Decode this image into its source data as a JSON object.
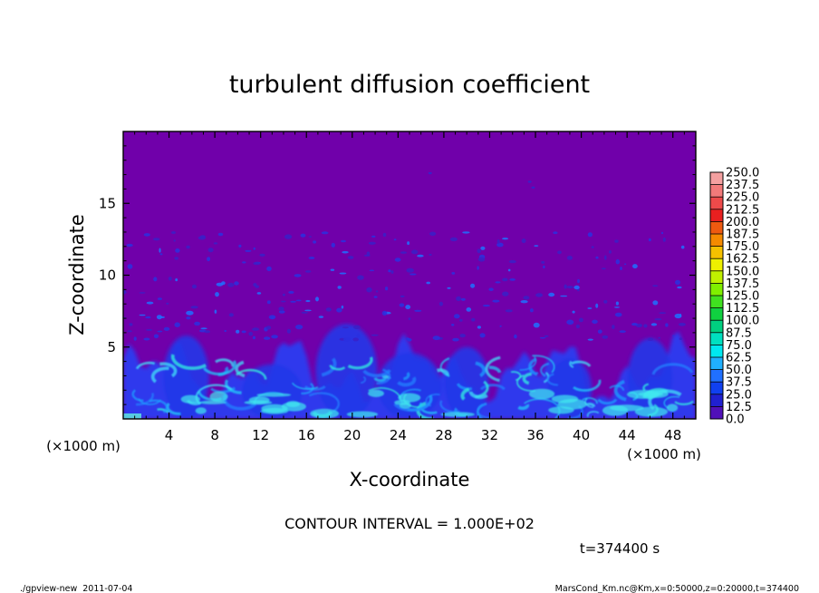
{
  "chart_data": {
    "type": "heatmap",
    "title": "turbulent diffusion coefficient",
    "xlabel": "X-coordinate",
    "ylabel": "Z-coordinate",
    "x_units": "(×1000 m)",
    "y_units": "(×1000 m)",
    "xlim": [
      0,
      50
    ],
    "ylim": [
      0,
      20
    ],
    "x_ticks": [
      4,
      8,
      12,
      16,
      20,
      24,
      28,
      32,
      36,
      40,
      44,
      48
    ],
    "y_ticks": [
      5,
      10,
      15
    ],
    "colorbar": {
      "levels": [
        "250.0",
        "237.5",
        "225.0",
        "212.5",
        "200.0",
        "187.5",
        "175.0",
        "162.5",
        "150.0",
        "137.5",
        "125.0",
        "112.5",
        "100.0",
        "87.5",
        "75.0",
        "62.5",
        "50.0",
        "37.5",
        "25.0",
        "12.5",
        "0.0"
      ],
      "colors": [
        "#f4a0a0",
        "#f27a7a",
        "#ee4a4a",
        "#e82020",
        "#ee5a10",
        "#f58a00",
        "#f5c000",
        "#eef000",
        "#c0f000",
        "#80f000",
        "#40e020",
        "#10d040",
        "#00d080",
        "#00e0c0",
        "#00e8f0",
        "#20b0ff",
        "#2070ff",
        "#1040f0",
        "#2020d0",
        "#5010b8",
        "#7000aa"
      ]
    },
    "background_color": "#7000aa",
    "contour_interval_label": "CONTOUR INTERVAL = 1.000E+02",
    "time_label": "t=374400 s"
  },
  "footer": {
    "left": "./gpview-new  2011-07-04",
    "right": "MarsCond_Km.nc@Km,x=0:50000,z=0:20000,t=374400"
  }
}
